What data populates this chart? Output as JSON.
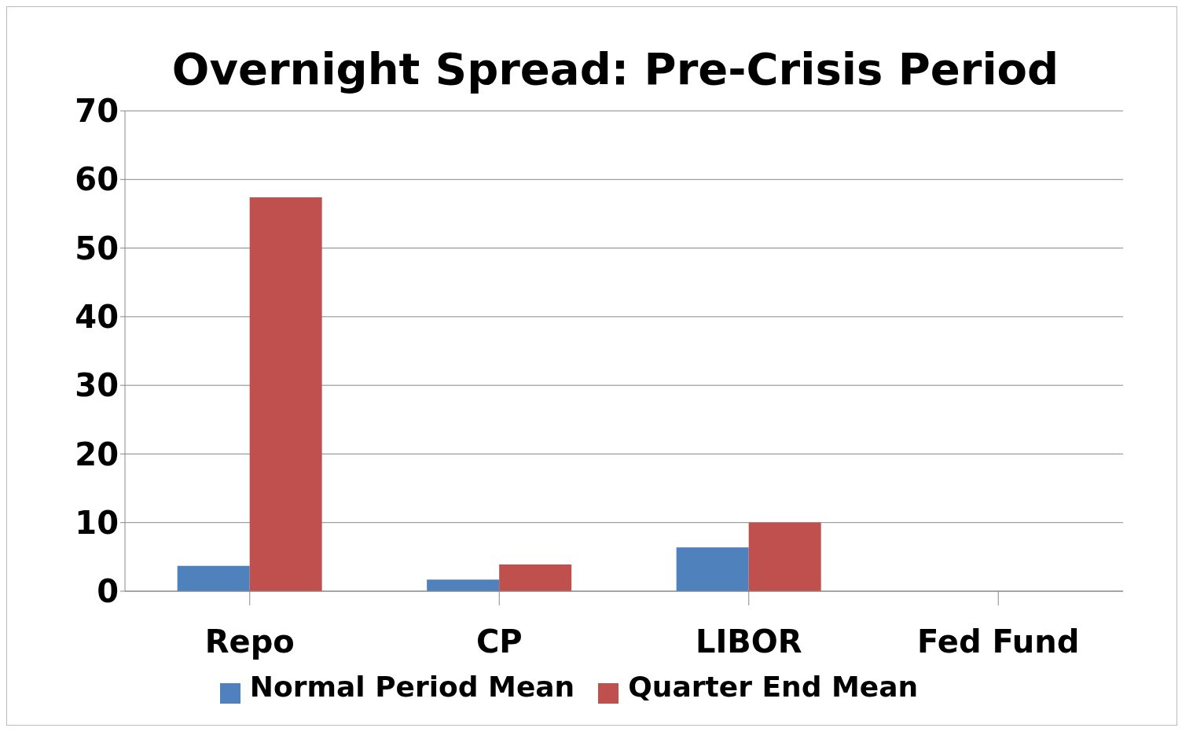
{
  "chart_data": {
    "type": "bar",
    "title": "Overnight Spread: Pre-Crisis Period",
    "categories": [
      "Repo",
      "CP",
      "LIBOR",
      "Fed Fund"
    ],
    "series": [
      {
        "name": "Normal Period Mean",
        "color": "#4f81bd",
        "values": [
          3.7,
          1.7,
          6.4,
          0
        ]
      },
      {
        "name": "Quarter End Mean",
        "color": "#c0504d",
        "values": [
          57.4,
          3.9,
          10,
          0
        ]
      }
    ],
    "ylim": [
      0,
      70
    ],
    "yticks": [
      0,
      10,
      20,
      30,
      40,
      50,
      60,
      70
    ],
    "grid": "y",
    "legend": "bottom"
  }
}
